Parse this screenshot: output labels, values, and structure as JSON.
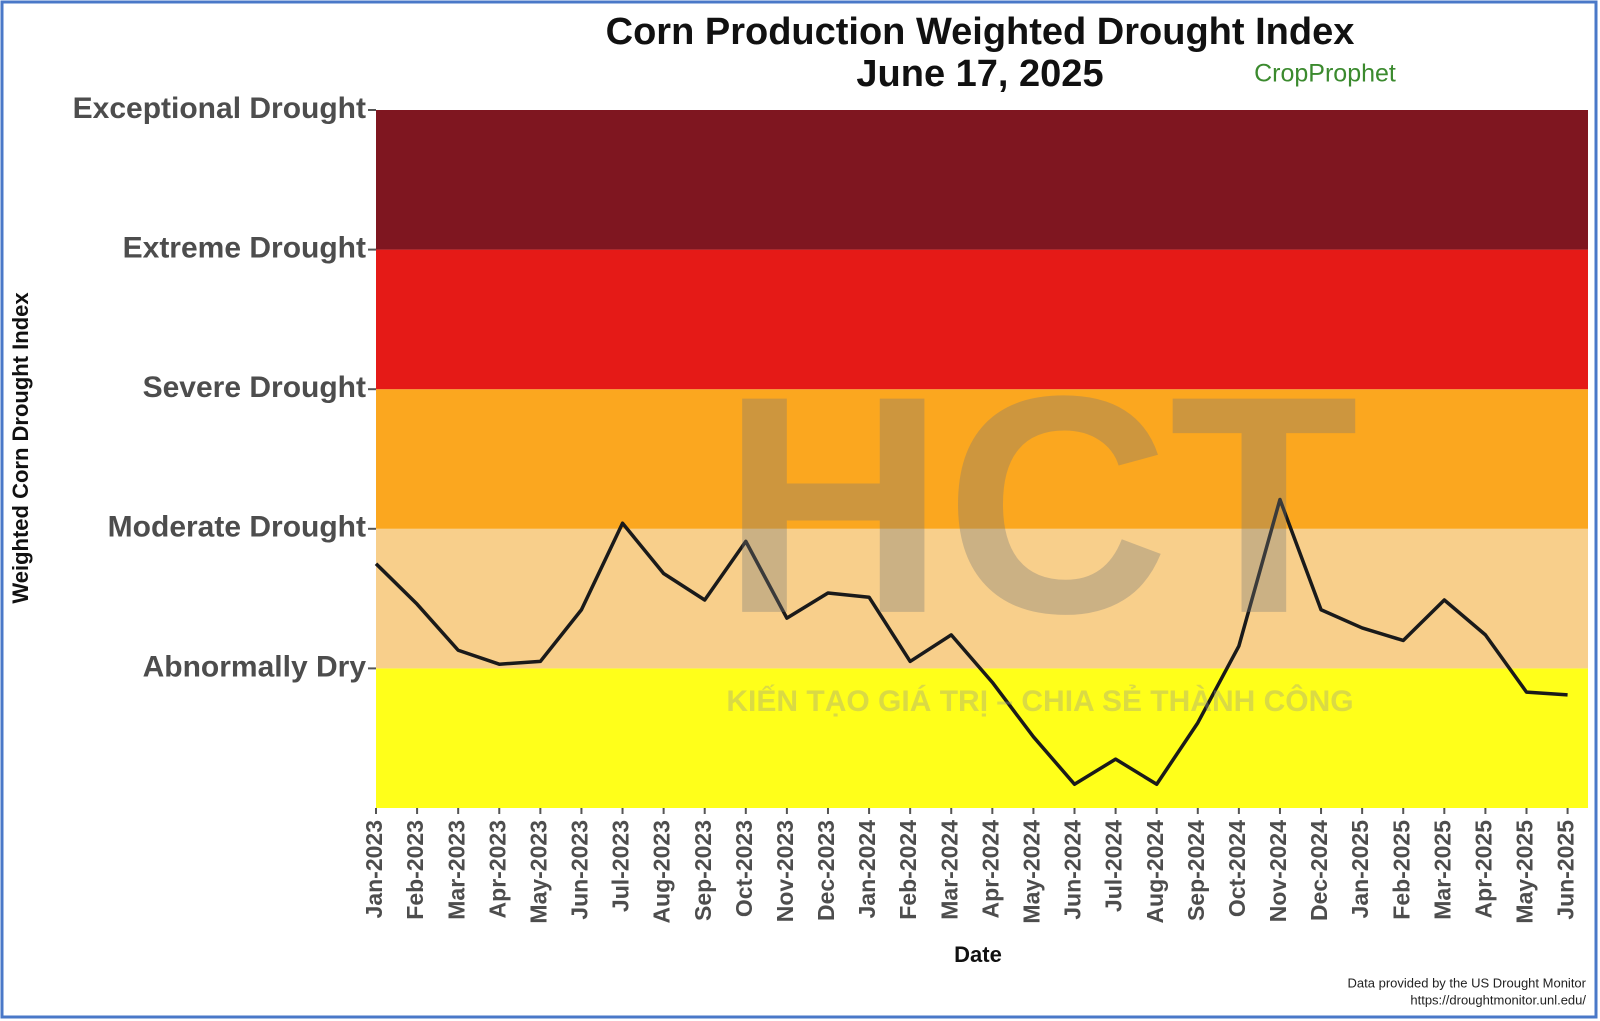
{
  "chart_data": {
    "type": "line",
    "title": "Corn Production Weighted Drought Index",
    "subtitle": "June 17, 2025",
    "logo": "CropProphet",
    "watermark": "HCT",
    "watermark_slogan": "KIẾN TẠO GIÁ TRỊ – CHIA SẺ THÀNH CÔNG",
    "x_label": "Date",
    "y_label": "Weighted Corn Drought Index",
    "source": [
      "Data provided by the US Drought Monitor",
      "https://droughtmonitor.unl.edu/"
    ],
    "categories": [
      "Jan-2023",
      "Feb-2023",
      "Mar-2023",
      "Apr-2023",
      "May-2023",
      "Jun-2023",
      "Jul-2023",
      "Aug-2023",
      "Sep-2023",
      "Oct-2023",
      "Nov-2023",
      "Dec-2023",
      "Jan-2024",
      "Feb-2024",
      "Mar-2024",
      "Apr-2024",
      "May-2024",
      "Jun-2024",
      "Jul-2024",
      "Aug-2024",
      "Sep-2024",
      "Oct-2024",
      "Nov-2024",
      "Dec-2024",
      "Jan-2025",
      "Feb-2025",
      "Mar-2025",
      "Apr-2025",
      "May-2025",
      "Jun-2025"
    ],
    "series": [
      {
        "name": "Weighted Corn Drought Index",
        "color": "#1a1a1a",
        "values": [
          0.75,
          0.46,
          0.13,
          0.03,
          0.05,
          0.42,
          1.04,
          0.68,
          0.49,
          0.91,
          0.36,
          0.54,
          0.51,
          0.05,
          0.24,
          -0.1,
          -0.49,
          -0.83,
          -0.65,
          -0.83,
          -0.39,
          0.16,
          1.21,
          0.42,
          0.29,
          0.2,
          0.49,
          0.24,
          -0.17,
          -0.19
        ]
      }
    ],
    "ylim": [
      -1,
      4
    ],
    "yticks": [
      {
        "value": 0,
        "label": "Abnormally Dry"
      },
      {
        "value": 1,
        "label": "Moderate Drought"
      },
      {
        "value": 2,
        "label": "Severe Drought"
      },
      {
        "value": 3,
        "label": "Extreme Drought"
      },
      {
        "value": 4,
        "label": "Exceptional Drought"
      }
    ],
    "band_colors": [
      "#ffff1a",
      "#f8cf8b",
      "#fba71f",
      "#e51a17",
      "#7f1620"
    ]
  }
}
